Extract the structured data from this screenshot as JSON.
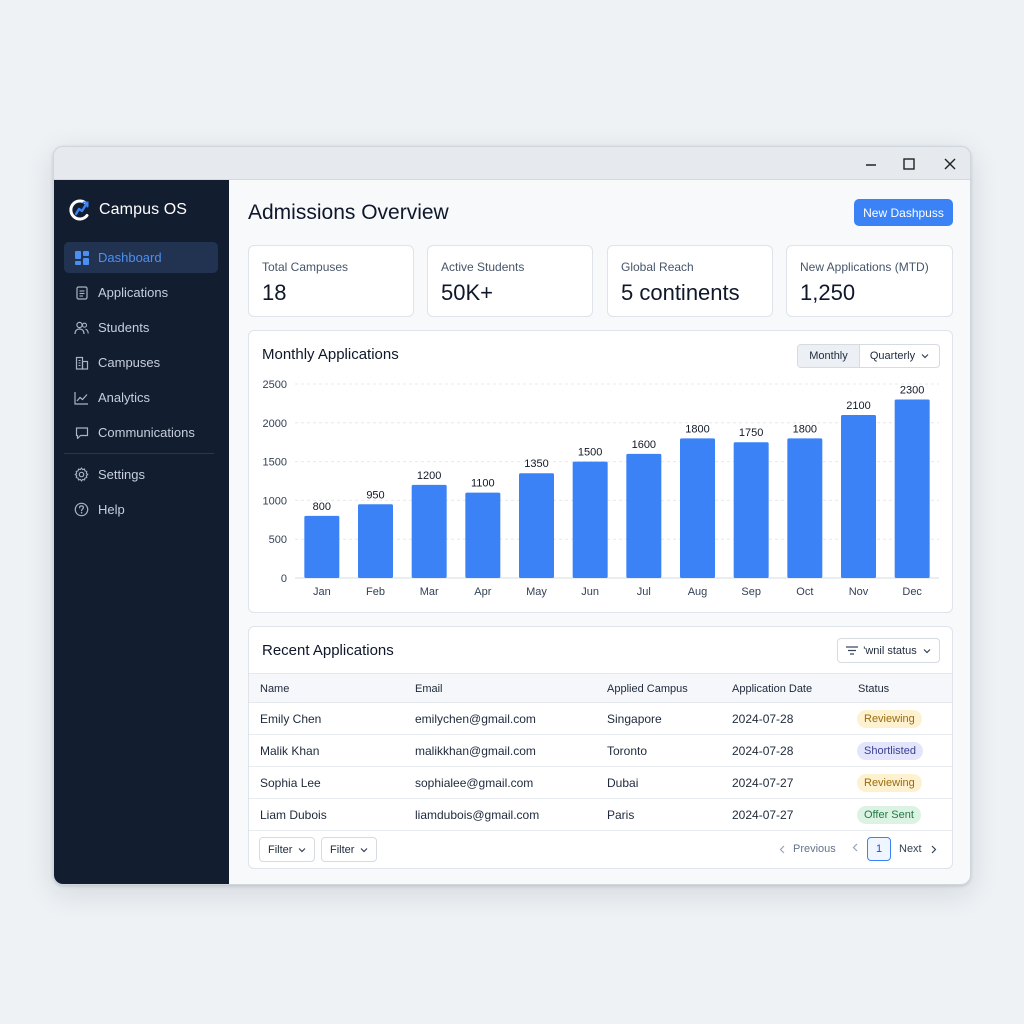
{
  "app": {
    "name": "Campus OS"
  },
  "sidebar": {
    "items": [
      {
        "label": "Dashboard",
        "icon": "dashboard-icon",
        "active": true
      },
      {
        "label": "Applications",
        "icon": "document-icon"
      },
      {
        "label": "Students",
        "icon": "users-icon"
      },
      {
        "label": "Campuses",
        "icon": "building-icon"
      },
      {
        "label": "Analytics",
        "icon": "chart-line-icon"
      },
      {
        "label": "Communications",
        "icon": "message-icon"
      }
    ],
    "secondary": [
      {
        "label": "Settings",
        "icon": "gear-icon"
      },
      {
        "label": "Help",
        "icon": "help-icon"
      }
    ]
  },
  "header": {
    "title": "Admissions Overview",
    "primary_button": "New Dashpuss"
  },
  "stats": [
    {
      "label": "Total Campuses",
      "value": "18"
    },
    {
      "label": "Active Students",
      "value": "50K+"
    },
    {
      "label": "Global Reach",
      "value": "5 continents"
    },
    {
      "label": "New Applications (MTD)",
      "value": "1,250"
    }
  ],
  "monthly": {
    "title": "Monthly Applications",
    "toggle": {
      "active": "Monthly",
      "dropdown": "Quarterly"
    }
  },
  "chart_data": {
    "type": "bar",
    "categories": [
      "Jan",
      "Feb",
      "Mar",
      "Apr",
      "May",
      "Jun",
      "Jul",
      "Aug",
      "Sep",
      "Oct",
      "Nov",
      "Dec"
    ],
    "values": [
      800,
      950,
      1200,
      1100,
      1350,
      1500,
      1600,
      1800,
      1750,
      1800,
      2100,
      2300
    ],
    "title": "Monthly Applications",
    "xlabel": "",
    "ylabel": "",
    "ylim": [
      0,
      2500
    ],
    "yticks": [
      0,
      500,
      1000,
      1500,
      2000,
      2500
    ],
    "grid": true,
    "bar_color": "#3b82f6"
  },
  "recent": {
    "title": "Recent Applications",
    "filter_label": "'wnil status",
    "columns": [
      "Name",
      "Email",
      "Applied Campus",
      "Application Date",
      "Status"
    ],
    "rows": [
      {
        "name": "Emily Chen",
        "email": "emilychen@gmail.com",
        "campus": "Singapore",
        "date": "2024-07-28",
        "status": "Reviewing",
        "status_type": "reviewing"
      },
      {
        "name": "Malik Khan",
        "email": "malikkhan@gmail.com",
        "campus": "Toronto",
        "date": "2024-07-28",
        "status": "Shortlisted",
        "status_type": "shortlisted"
      },
      {
        "name": "Sophia Lee",
        "email": "sophialee@gmail.com",
        "campus": "Dubai",
        "date": "2024-07-27",
        "status": "Reviewing",
        "status_type": "reviewing"
      },
      {
        "name": "Liam Dubois",
        "email": "liamdubois@gmail.com",
        "campus": "Paris",
        "date": "2024-07-27",
        "status": "Offer Sent",
        "status_type": "offer"
      }
    ],
    "footer": {
      "filter1": "Filter",
      "filter2": "Filter",
      "previous": "Previous",
      "page": "1",
      "next": "Next"
    }
  },
  "colors": {
    "accent": "#3b82f6",
    "sidebar_bg": "#131d30",
    "reviewing_bg": "#fdf1cf",
    "reviewing_fg": "#9a6b0f",
    "shortlisted_bg": "#e2e5fb",
    "shortlisted_fg": "#3b3f8f",
    "offer_bg": "#dcf3e4",
    "offer_fg": "#1f7a45"
  }
}
